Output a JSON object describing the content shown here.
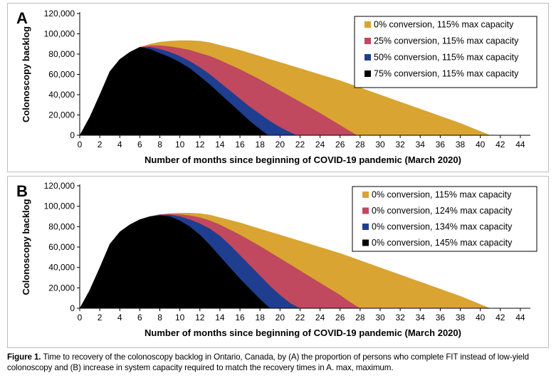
{
  "caption": {
    "label": "Figure 1.",
    "text": "Time to recovery of the colonoscopy backlog in Ontario, Canada, by (A) the proportion of persons who complete FIT instead of low-yield colonoscopy and (B) increase in system capacity required to match the recovery times in A. max, maximum."
  },
  "colors": {
    "gold": "#D9A431",
    "rose": "#C0485F",
    "navy": "#1F3E8F",
    "black": "#000000"
  },
  "chart_data": [
    {
      "panel_label": "A",
      "type": "area",
      "xlabel": "Number of months since beginning of COVID-19 pandemic (March 2020)",
      "ylabel": "Colonoscopy backlog",
      "xlim": [
        0,
        45
      ],
      "ylim": [
        0,
        120000
      ],
      "x_ticks": [
        0,
        2,
        4,
        6,
        8,
        10,
        12,
        14,
        16,
        18,
        20,
        22,
        24,
        26,
        28,
        30,
        32,
        34,
        36,
        38,
        40,
        42,
        44
      ],
      "y_ticks": [
        0,
        20000,
        40000,
        60000,
        80000,
        100000,
        120000
      ],
      "y_tick_labels": [
        "0",
        "20,000",
        "40,000",
        "60,000",
        "80,000",
        "100,000",
        "120,000"
      ],
      "legend_position": "top-right",
      "series": [
        {
          "name": "0% conversion, 115% max capacity",
          "color": "#D9A431",
          "points": [
            [
              0,
              0
            ],
            [
              1,
              18000
            ],
            [
              2,
              40000
            ],
            [
              3,
              63000
            ],
            [
              4,
              75000
            ],
            [
              5,
              82000
            ],
            [
              6,
              87000
            ],
            [
              7,
              90000
            ],
            [
              8,
              92000
            ],
            [
              9,
              93000
            ],
            [
              10,
              93500
            ],
            [
              11,
              93500
            ],
            [
              12,
              93000
            ],
            [
              13,
              91500
            ],
            [
              14,
              89000
            ],
            [
              16,
              84000
            ],
            [
              18,
              78000
            ],
            [
              20,
              72000
            ],
            [
              22,
              66000
            ],
            [
              24,
              60000
            ],
            [
              26,
              54000
            ],
            [
              28,
              47000
            ],
            [
              30,
              40000
            ],
            [
              32,
              33000
            ],
            [
              34,
              26000
            ],
            [
              36,
              19000
            ],
            [
              38,
              12000
            ],
            [
              40,
              4000
            ],
            [
              41,
              0
            ]
          ]
        },
        {
          "name": "25% conversion, 115% max capacity",
          "color": "#C0485F",
          "points": [
            [
              0,
              0
            ],
            [
              1,
              18000
            ],
            [
              2,
              40000
            ],
            [
              3,
              63000
            ],
            [
              4,
              75000
            ],
            [
              5,
              82000
            ],
            [
              6,
              87000
            ],
            [
              7,
              88500
            ],
            [
              8,
              88500
            ],
            [
              9,
              87500
            ],
            [
              10,
              86000
            ],
            [
              11,
              84000
            ],
            [
              12,
              81000
            ],
            [
              13,
              78000
            ],
            [
              14,
              74000
            ],
            [
              16,
              65000
            ],
            [
              18,
              55000
            ],
            [
              20,
              44000
            ],
            [
              22,
              33000
            ],
            [
              24,
              22000
            ],
            [
              26,
              10000
            ],
            [
              27,
              4000
            ],
            [
              27.7,
              0
            ]
          ]
        },
        {
          "name": "50% conversion, 115% max capacity",
          "color": "#1F3E8F",
          "points": [
            [
              0,
              0
            ],
            [
              1,
              18000
            ],
            [
              2,
              40000
            ],
            [
              3,
              63000
            ],
            [
              4,
              75000
            ],
            [
              5,
              82000
            ],
            [
              6,
              87000
            ],
            [
              7,
              87000
            ],
            [
              8,
              85000
            ],
            [
              9,
              82000
            ],
            [
              10,
              78000
            ],
            [
              11,
              73000
            ],
            [
              12,
              67000
            ],
            [
              13,
              60000
            ],
            [
              14,
              52000
            ],
            [
              15,
              44000
            ],
            [
              16,
              36000
            ],
            [
              17,
              28000
            ],
            [
              18,
              21000
            ],
            [
              19,
              14000
            ],
            [
              20,
              8000
            ],
            [
              21,
              3000
            ],
            [
              21.7,
              0
            ]
          ]
        },
        {
          "name": "75% conversion, 115% max capacity",
          "color": "#000000",
          "points": [
            [
              0,
              0
            ],
            [
              1,
              18000
            ],
            [
              2,
              40000
            ],
            [
              3,
              63000
            ],
            [
              4,
              75000
            ],
            [
              5,
              82000
            ],
            [
              6,
              87000
            ],
            [
              7,
              85000
            ],
            [
              8,
              81000
            ],
            [
              9,
              77000
            ],
            [
              10,
              72000
            ],
            [
              11,
              66000
            ],
            [
              12,
              58000
            ],
            [
              13,
              50000
            ],
            [
              14,
              41000
            ],
            [
              15,
              32000
            ],
            [
              16,
              23000
            ],
            [
              17,
              14000
            ],
            [
              18,
              6000
            ],
            [
              18.8,
              0
            ]
          ]
        }
      ]
    },
    {
      "panel_label": "B",
      "type": "area",
      "xlabel": "Number of months since beginning of COVID-19 pandemic (March 2020)",
      "ylabel": "Colonoscopy backlog",
      "xlim": [
        0,
        45
      ],
      "ylim": [
        0,
        120000
      ],
      "x_ticks": [
        0,
        2,
        4,
        6,
        8,
        10,
        12,
        14,
        16,
        18,
        20,
        22,
        24,
        26,
        28,
        30,
        32,
        34,
        36,
        38,
        40,
        42,
        44
      ],
      "y_ticks": [
        0,
        20000,
        40000,
        60000,
        80000,
        100000,
        120000
      ],
      "y_tick_labels": [
        "0",
        "20,000",
        "40,000",
        "60,000",
        "80,000",
        "100,000",
        "120,000"
      ],
      "legend_position": "top-right",
      "series": [
        {
          "name": "0% conversion, 115% max capacity",
          "color": "#D9A431",
          "points": [
            [
              0,
              0
            ],
            [
              1,
              18000
            ],
            [
              2,
              40000
            ],
            [
              3,
              63000
            ],
            [
              4,
              75000
            ],
            [
              5,
              82000
            ],
            [
              6,
              87000
            ],
            [
              7,
              90000
            ],
            [
              8,
              92000
            ],
            [
              9,
              93000
            ],
            [
              10,
              93500
            ],
            [
              11,
              93500
            ],
            [
              12,
              93000
            ],
            [
              13,
              91500
            ],
            [
              14,
              89000
            ],
            [
              16,
              84000
            ],
            [
              18,
              78000
            ],
            [
              20,
              72000
            ],
            [
              22,
              66000
            ],
            [
              24,
              60000
            ],
            [
              26,
              54000
            ],
            [
              28,
              47000
            ],
            [
              30,
              40000
            ],
            [
              32,
              33000
            ],
            [
              34,
              26000
            ],
            [
              36,
              19000
            ],
            [
              38,
              12000
            ],
            [
              40,
              4000
            ],
            [
              41,
              0
            ]
          ]
        },
        {
          "name": "0% conversion, 124% max capacity",
          "color": "#C0485F",
          "points": [
            [
              0,
              0
            ],
            [
              1,
              18000
            ],
            [
              2,
              40000
            ],
            [
              3,
              63000
            ],
            [
              4,
              75000
            ],
            [
              5,
              82000
            ],
            [
              6,
              87000
            ],
            [
              7,
              90000
            ],
            [
              8,
              92000
            ],
            [
              9,
              92500
            ],
            [
              10,
              92000
            ],
            [
              11,
              91000
            ],
            [
              12,
              89000
            ],
            [
              13,
              86000
            ],
            [
              14,
              82000
            ],
            [
              16,
              72000
            ],
            [
              18,
              61000
            ],
            [
              20,
              49000
            ],
            [
              22,
              37000
            ],
            [
              24,
              25000
            ],
            [
              26,
              13000
            ],
            [
              27,
              6000
            ],
            [
              28,
              0
            ]
          ]
        },
        {
          "name": "0% conversion, 134% max capacity",
          "color": "#1F3E8F",
          "points": [
            [
              0,
              0
            ],
            [
              1,
              18000
            ],
            [
              2,
              40000
            ],
            [
              3,
              63000
            ],
            [
              4,
              75000
            ],
            [
              5,
              82000
            ],
            [
              6,
              87000
            ],
            [
              7,
              90000
            ],
            [
              8,
              91500
            ],
            [
              9,
              91500
            ],
            [
              10,
              90000
            ],
            [
              11,
              87000
            ],
            [
              12,
              83000
            ],
            [
              13,
              78000
            ],
            [
              14,
              71000
            ],
            [
              15,
              62000
            ],
            [
              16,
              52000
            ],
            [
              17,
              42000
            ],
            [
              18,
              32000
            ],
            [
              19,
              22000
            ],
            [
              20,
              13000
            ],
            [
              21,
              5000
            ],
            [
              22,
              0
            ]
          ]
        },
        {
          "name": "0% conversion, 145% max capacity",
          "color": "#000000",
          "points": [
            [
              0,
              0
            ],
            [
              1,
              18000
            ],
            [
              2,
              40000
            ],
            [
              3,
              63000
            ],
            [
              4,
              75000
            ],
            [
              5,
              82000
            ],
            [
              6,
              87000
            ],
            [
              7,
              90000
            ],
            [
              8,
              91000
            ],
            [
              9,
              90000
            ],
            [
              10,
              86000
            ],
            [
              11,
              80000
            ],
            [
              12,
              72000
            ],
            [
              13,
              62000
            ],
            [
              14,
              51000
            ],
            [
              15,
              40000
            ],
            [
              16,
              29000
            ],
            [
              17,
              19000
            ],
            [
              18,
              9000
            ],
            [
              19,
              0
            ]
          ]
        }
      ]
    }
  ]
}
